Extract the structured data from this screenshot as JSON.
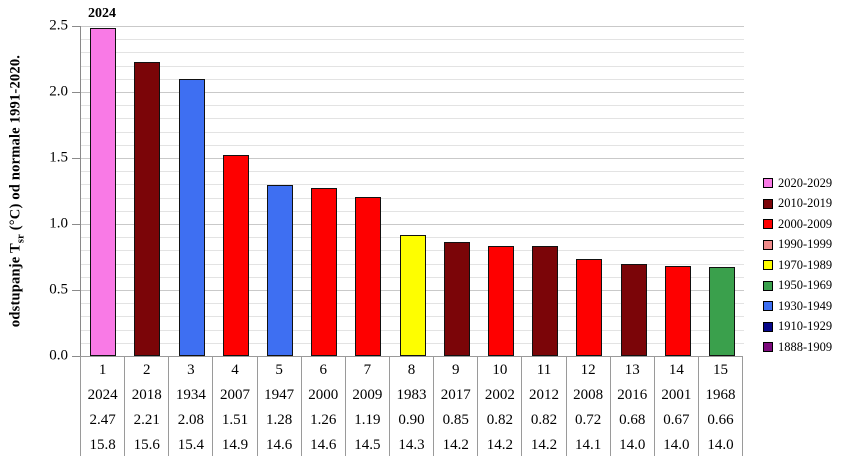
{
  "chart_data": {
    "type": "bar",
    "title": "",
    "ylabel": {
      "pre": "odstupanje T",
      "sub": "sr",
      "post": " (°C) od normale 1991-2020.",
      "full": "odstupanje Tsr (°C) od normale 1991-2020."
    },
    "annotation": "2024",
    "ylim": [
      0.0,
      2.5
    ],
    "ytick_step": 0.5,
    "minor_grid_step": 0.1,
    "grid": true,
    "yticks": [
      "0.0",
      "0.5",
      "1.0",
      "1.5",
      "2.0",
      "2.5"
    ],
    "legend_position": "right",
    "table_row_meaning": [
      "rank",
      "year",
      "anomaly_degC",
      "mean_temp_degC"
    ],
    "bars": [
      {
        "rank": "1",
        "year": "2024",
        "anomaly": "2.47",
        "temp": "15.8",
        "decade": "2020-2029"
      },
      {
        "rank": "2",
        "year": "2018",
        "anomaly": "2.21",
        "temp": "15.6",
        "decade": "2010-2019"
      },
      {
        "rank": "3",
        "year": "1934",
        "anomaly": "2.08",
        "temp": "15.4",
        "decade": "1930-1949"
      },
      {
        "rank": "4",
        "year": "2007",
        "anomaly": "1.51",
        "temp": "14.9",
        "decade": "2000-2009"
      },
      {
        "rank": "5",
        "year": "1947",
        "anomaly": "1.28",
        "temp": "14.6",
        "decade": "1930-1949"
      },
      {
        "rank": "6",
        "year": "2000",
        "anomaly": "1.26",
        "temp": "14.6",
        "decade": "2000-2009"
      },
      {
        "rank": "7",
        "year": "2009",
        "anomaly": "1.19",
        "temp": "14.5",
        "decade": "2000-2009"
      },
      {
        "rank": "8",
        "year": "1983",
        "anomaly": "0.90",
        "temp": "14.3",
        "decade": "1970-1989"
      },
      {
        "rank": "9",
        "year": "2017",
        "anomaly": "0.85",
        "temp": "14.2",
        "decade": "2010-2019"
      },
      {
        "rank": "10",
        "year": "2002",
        "anomaly": "0.82",
        "temp": "14.2",
        "decade": "2000-2009"
      },
      {
        "rank": "11",
        "year": "2012",
        "anomaly": "0.82",
        "temp": "14.2",
        "decade": "2010-2019"
      },
      {
        "rank": "12",
        "year": "2008",
        "anomaly": "0.72",
        "temp": "14.1",
        "decade": "2000-2009"
      },
      {
        "rank": "13",
        "year": "2016",
        "anomaly": "0.68",
        "temp": "14.0",
        "decade": "2010-2019"
      },
      {
        "rank": "14",
        "year": "2001",
        "anomaly": "0.67",
        "temp": "14.0",
        "decade": "2000-2009"
      },
      {
        "rank": "15",
        "year": "1968",
        "anomaly": "0.66",
        "temp": "14.0",
        "decade": "1950-1969"
      }
    ],
    "legend": [
      {
        "label": "2020-2029",
        "color": "#F97AE6"
      },
      {
        "label": "2010-2019",
        "color": "#7B0508"
      },
      {
        "label": "2000-2009",
        "color": "#FE0000"
      },
      {
        "label": "1990-1999",
        "color": "#EF8B8B"
      },
      {
        "label": "1970-1989",
        "color": "#FEFE00"
      },
      {
        "label": "1950-1969",
        "color": "#3AA04C"
      },
      {
        "label": "1930-1949",
        "color": "#3E6FF2"
      },
      {
        "label": "1910-1929",
        "color": "#08088A"
      },
      {
        "label": "1888-1909",
        "color": "#7C0A7C"
      }
    ]
  }
}
